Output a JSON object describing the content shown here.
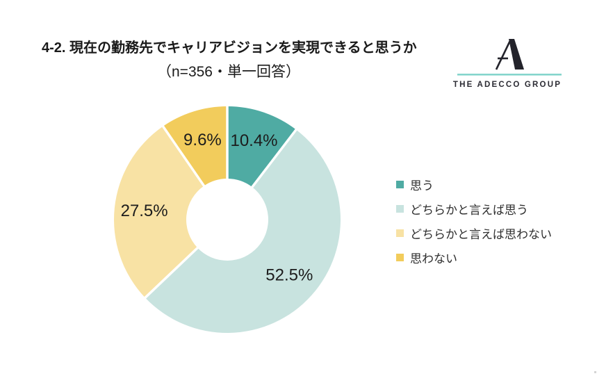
{
  "header": {
    "title": "4-2. 現在の勤務先でキャリアビジョンを実現できると思うか",
    "subtitle": "（n=356・単一回答）"
  },
  "logo": {
    "brand_name": "THE ADECCO GROUP",
    "mark": "adecco-a-mark",
    "mark_color": "#23232b",
    "underline_color": "#85d5cc"
  },
  "chart_data": {
    "type": "pie",
    "title": "4-2. 現在の勤務先でキャリアビジョンを実現できると思うか",
    "subtitle": "（n=356・単一回答）",
    "sample_size": 356,
    "answer_type": "単一回答",
    "categories": [
      "思う",
      "どちらかと言えば思う",
      "どちらかと言えば思わない",
      "思わない"
    ],
    "values": [
      10.4,
      52.5,
      27.5,
      9.6
    ],
    "labels": [
      "10.4%",
      "52.5%",
      "27.5%",
      "9.6%"
    ],
    "colors": [
      "#4FABA3",
      "#C8E3DF",
      "#F8E2A4",
      "#F2CC5C"
    ],
    "donut": true,
    "inner_radius_ratio": 0.36,
    "start_angle_deg": 0,
    "direction": "clockwise",
    "legend_position": "right",
    "label_color": "#1c1c1c",
    "separator_color": "#ffffff"
  }
}
